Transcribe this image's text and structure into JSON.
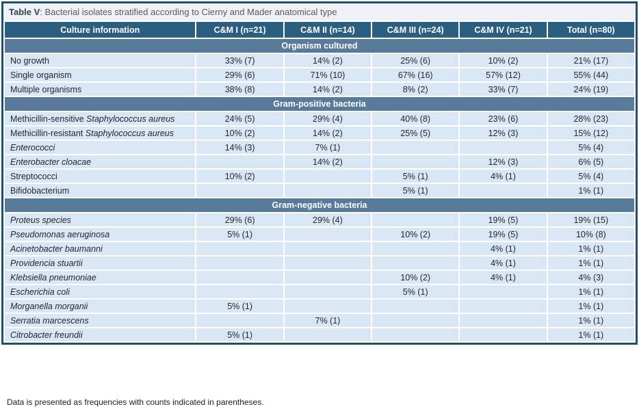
{
  "title": {
    "prefix": "Table V",
    "text": ": Bacterial isolates stratified according to Cierny and Mader anatomical type"
  },
  "table": {
    "columns": [
      "Culture information",
      "C&M I (n=21)",
      "C&M II (n=14)",
      "C&M III (n=24)",
      "C&M IV (n=21)",
      "Total (n=80)"
    ],
    "sections": [
      {
        "title": "Organism cultured",
        "rows": [
          {
            "label": [
              {
                "text": "No growth",
                "italic": false
              }
            ],
            "values": [
              "33% (7)",
              "14% (2)",
              "25% (6)",
              "10% (2)",
              "21% (17)"
            ]
          },
          {
            "label": [
              {
                "text": "Single organism",
                "italic": false
              }
            ],
            "values": [
              "29% (6)",
              "71% (10)",
              "67% (16)",
              "57% (12)",
              "55% (44)"
            ]
          },
          {
            "label": [
              {
                "text": "Multiple organisms",
                "italic": false
              }
            ],
            "values": [
              "38% (8)",
              "14% (2)",
              "8% (2)",
              "33% (7)",
              "24% (19)"
            ]
          }
        ]
      },
      {
        "title": "Gram-positive bacteria",
        "rows": [
          {
            "label": [
              {
                "text": "Methicillin-sensitive ",
                "italic": false
              },
              {
                "text": "Staphylococcus aureus",
                "italic": true
              }
            ],
            "values": [
              "24% (5)",
              "29% (4)",
              "40% (8)",
              "23% (6)",
              "28% (23)"
            ]
          },
          {
            "label": [
              {
                "text": "Methicillin-resistant ",
                "italic": false
              },
              {
                "text": "Staphylococcus aureus",
                "italic": true
              }
            ],
            "values": [
              "10% (2)",
              "14% (2)",
              "25% (5)",
              "12% (3)",
              "15% (12)"
            ]
          },
          {
            "label": [
              {
                "text": "Enterococci",
                "italic": true
              }
            ],
            "values": [
              "14% (3)",
              "7% (1)",
              "",
              "",
              "5% (4)"
            ]
          },
          {
            "label": [
              {
                "text": "Enterobacter cloacae",
                "italic": true
              }
            ],
            "values": [
              "",
              "14% (2)",
              "",
              "12% (3)",
              "6% (5)"
            ]
          },
          {
            "label": [
              {
                "text": "Streptococci",
                "italic": false
              }
            ],
            "values": [
              "10% (2)",
              "",
              "5% (1)",
              "4% (1)",
              "5% (4)"
            ]
          },
          {
            "label": [
              {
                "text": "Bifidobacterium",
                "italic": false
              }
            ],
            "values": [
              "",
              "",
              "5% (1)",
              "",
              "1% (1)"
            ]
          }
        ]
      },
      {
        "title": "Gram-negative bacteria",
        "rows": [
          {
            "label": [
              {
                "text": "Proteus species",
                "italic": true
              }
            ],
            "values": [
              "29% (6)",
              "29% (4)",
              "",
              "19% (5)",
              "19% (15)"
            ]
          },
          {
            "label": [
              {
                "text": "Pseudomonas aeruginosa",
                "italic": true
              }
            ],
            "values": [
              "5% (1)",
              "",
              "10% (2)",
              "19% (5)",
              "10% (8)"
            ]
          },
          {
            "label": [
              {
                "text": "Acinetobacter baumanni",
                "italic": true
              }
            ],
            "values": [
              "",
              "",
              "",
              "4% (1)",
              "1% (1)"
            ]
          },
          {
            "label": [
              {
                "text": "Providencia stuartii",
                "italic": true
              }
            ],
            "values": [
              "",
              "",
              "",
              "4% (1)",
              "1% (1)"
            ]
          },
          {
            "label": [
              {
                "text": "Klebsiella pneumoniae",
                "italic": true
              }
            ],
            "values": [
              "",
              "",
              "10% (2)",
              "4% (1)",
              "4% (3)"
            ]
          },
          {
            "label": [
              {
                "text": "Escherichia coli",
                "italic": true
              }
            ],
            "values": [
              "",
              "",
              "5% (1)",
              "",
              "1% (1)"
            ]
          },
          {
            "label": [
              {
                "text": "Morganella morganii",
                "italic": true
              }
            ],
            "values": [
              "5% (1)",
              "",
              "",
              "",
              "1% (1)"
            ]
          },
          {
            "label": [
              {
                "text": "Serratia marcescens",
                "italic": true
              }
            ],
            "values": [
              "",
              "7% (1)",
              "",
              "",
              "1% (1)"
            ]
          },
          {
            "label": [
              {
                "text": "Citrobacter freundii",
                "italic": true
              }
            ],
            "values": [
              "5% (1)",
              "",
              "",
              "",
              "1% (1)"
            ]
          }
        ]
      }
    ]
  },
  "footnote": "Data is presented as frequencies with counts indicated in parentheses.",
  "colors": {
    "border": "#1e4e70",
    "header_bg": "#2b5f80",
    "section_bg": "#587a9b",
    "row_bg": "#d9e6f3",
    "title_bg": "#eef1f6"
  }
}
